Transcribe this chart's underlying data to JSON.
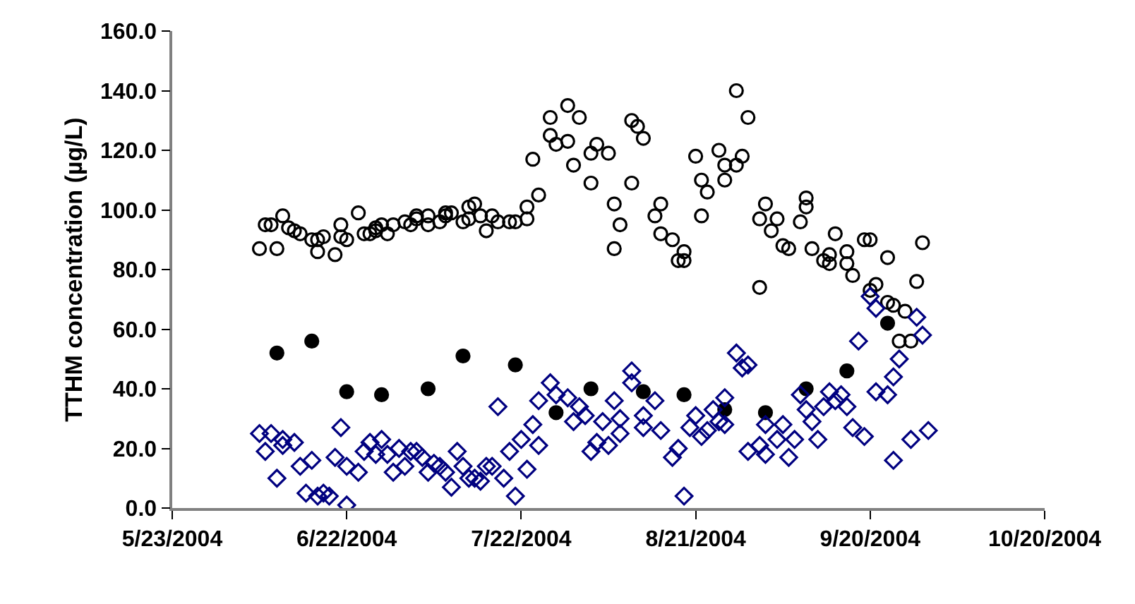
{
  "chart_data": {
    "type": "scatter",
    "ylabel": "TTHM concentration (µg/L)",
    "xlim": [
      "2004-05-23",
      "2004-10-20"
    ],
    "xticks": [
      {
        "value": "2004-05-23",
        "label": "5/23/2004"
      },
      {
        "value": "2004-06-22",
        "label": "6/22/2004"
      },
      {
        "value": "2004-07-22",
        "label": "7/22/2004"
      },
      {
        "value": "2004-08-21",
        "label": "8/21/2004"
      },
      {
        "value": "2004-09-20",
        "label": "9/20/2004"
      },
      {
        "value": "2004-10-20",
        "label": "10/20/2004"
      }
    ],
    "ylim": [
      0,
      160
    ],
    "yticks": [
      {
        "value": 0,
        "label": "0.0"
      },
      {
        "value": 20,
        "label": "20.0"
      },
      {
        "value": 40,
        "label": "40.0"
      },
      {
        "value": 60,
        "label": "60.0"
      },
      {
        "value": 80,
        "label": "80.0"
      },
      {
        "value": 100,
        "label": "100.0"
      },
      {
        "value": 120,
        "label": "120.0"
      },
      {
        "value": 140,
        "label": "140.0"
      },
      {
        "value": 160,
        "label": "160.0"
      }
    ],
    "series": [
      {
        "color": "#000000",
        "marker": "circle-open",
        "x": [
          "2004-06-07",
          "2004-06-08",
          "2004-06-09",
          "2004-06-10",
          "2004-06-11",
          "2004-06-12",
          "2004-06-13",
          "2004-06-14",
          "2004-06-16",
          "2004-06-17",
          "2004-06-17",
          "2004-06-18",
          "2004-06-20",
          "2004-06-21",
          "2004-06-21",
          "2004-06-22",
          "2004-06-24",
          "2004-06-25",
          "2004-06-26",
          "2004-06-27",
          "2004-06-27",
          "2004-06-28",
          "2004-06-29",
          "2004-06-30",
          "2004-07-02",
          "2004-07-03",
          "2004-07-04",
          "2004-07-04",
          "2004-07-06",
          "2004-07-06",
          "2004-07-08",
          "2004-07-09",
          "2004-07-09",
          "2004-07-10",
          "2004-07-12",
          "2004-07-13",
          "2004-07-13",
          "2004-07-14",
          "2004-07-15",
          "2004-07-16",
          "2004-07-17",
          "2004-07-18",
          "2004-07-20",
          "2004-07-21",
          "2004-07-23",
          "2004-07-23",
          "2004-07-24",
          "2004-07-25",
          "2004-07-27",
          "2004-07-27",
          "2004-07-28",
          "2004-07-30",
          "2004-07-30",
          "2004-07-31",
          "2004-08-01",
          "2004-08-03",
          "2004-08-03",
          "2004-08-04",
          "2004-08-06",
          "2004-08-07",
          "2004-08-07",
          "2004-08-08",
          "2004-08-10",
          "2004-08-10",
          "2004-08-11",
          "2004-08-12",
          "2004-08-14",
          "2004-08-15",
          "2004-08-15",
          "2004-08-17",
          "2004-08-18",
          "2004-08-19",
          "2004-08-19",
          "2004-08-21",
          "2004-08-22",
          "2004-08-22",
          "2004-08-23",
          "2004-08-25",
          "2004-08-26",
          "2004-08-26",
          "2004-08-28",
          "2004-08-28",
          "2004-08-29",
          "2004-08-30",
          "2004-09-01",
          "2004-09-01",
          "2004-09-02",
          "2004-09-03",
          "2004-09-04",
          "2004-09-05",
          "2004-09-06",
          "2004-09-08",
          "2004-09-09",
          "2004-09-09",
          "2004-09-10",
          "2004-09-12",
          "2004-09-13",
          "2004-09-13",
          "2004-09-14",
          "2004-09-16",
          "2004-09-16",
          "2004-09-17",
          "2004-09-19",
          "2004-09-20",
          "2004-09-20",
          "2004-09-21",
          "2004-09-23",
          "2004-09-23",
          "2004-09-24",
          "2004-09-25",
          "2004-09-26",
          "2004-09-27",
          "2004-09-28",
          "2004-09-29"
        ],
        "values": [
          87,
          95,
          95,
          87,
          98,
          94,
          93,
          92,
          90,
          90,
          86,
          91,
          85,
          91,
          95,
          90,
          99,
          92,
          92,
          93,
          94,
          95,
          92,
          95,
          96,
          95,
          97,
          98,
          95,
          98,
          96,
          99,
          98,
          99,
          96,
          97,
          101,
          102,
          98,
          93,
          98,
          96,
          96,
          96,
          101,
          97,
          117,
          105,
          125,
          131,
          122,
          135,
          123,
          115,
          131,
          119,
          109,
          122,
          119,
          102,
          87,
          95,
          109,
          130,
          128,
          124,
          98,
          102,
          92,
          90,
          83,
          86,
          83,
          118,
          110,
          98,
          106,
          120,
          110,
          115,
          115,
          140,
          118,
          131,
          74,
          97,
          102,
          93,
          97,
          88,
          87,
          96,
          104,
          101,
          87,
          83,
          85,
          82,
          92,
          86,
          82,
          78,
          90,
          73,
          90,
          75,
          84,
          69,
          68,
          56,
          66,
          56,
          76,
          89
        ]
      },
      {
        "color": "#000000",
        "marker": "circle",
        "x": [
          "2004-06-10",
          "2004-06-16",
          "2004-06-22",
          "2004-06-28",
          "2004-07-06",
          "2004-07-12",
          "2004-07-21",
          "2004-07-28",
          "2004-08-03",
          "2004-08-12",
          "2004-08-19",
          "2004-08-26",
          "2004-09-02",
          "2004-09-09",
          "2004-09-16",
          "2004-09-23"
        ],
        "values": [
          52,
          56,
          39,
          38,
          40,
          51,
          48,
          32,
          40,
          39,
          38,
          33,
          32,
          40,
          46,
          62
        ]
      },
      {
        "color": "#000080",
        "marker": "diamond-open",
        "x": [
          "2004-06-07",
          "2004-06-08",
          "2004-06-09",
          "2004-06-10",
          "2004-06-11",
          "2004-06-11",
          "2004-06-13",
          "2004-06-14",
          "2004-06-15",
          "2004-06-16",
          "2004-06-17",
          "2004-06-18",
          "2004-06-19",
          "2004-06-20",
          "2004-06-21",
          "2004-06-22",
          "2004-06-22",
          "2004-06-24",
          "2004-06-25",
          "2004-06-26",
          "2004-06-27",
          "2004-06-28",
          "2004-06-29",
          "2004-06-30",
          "2004-07-01",
          "2004-07-02",
          "2004-07-03",
          "2004-07-04",
          "2004-07-05",
          "2004-07-06",
          "2004-07-07",
          "2004-07-08",
          "2004-07-09",
          "2004-07-10",
          "2004-07-11",
          "2004-07-12",
          "2004-07-13",
          "2004-07-14",
          "2004-07-15",
          "2004-07-16",
          "2004-07-17",
          "2004-07-18",
          "2004-07-19",
          "2004-07-20",
          "2004-07-21",
          "2004-07-22",
          "2004-07-23",
          "2004-07-24",
          "2004-07-25",
          "2004-07-25",
          "2004-07-27",
          "2004-07-28",
          "2004-07-30",
          "2004-07-31",
          "2004-08-01",
          "2004-08-02",
          "2004-08-03",
          "2004-08-04",
          "2004-08-05",
          "2004-08-06",
          "2004-08-07",
          "2004-08-08",
          "2004-08-08",
          "2004-08-10",
          "2004-08-10",
          "2004-08-12",
          "2004-08-12",
          "2004-08-14",
          "2004-08-15",
          "2004-08-17",
          "2004-08-18",
          "2004-08-19",
          "2004-08-20",
          "2004-08-21",
          "2004-08-22",
          "2004-08-23",
          "2004-08-24",
          "2004-08-25",
          "2004-08-26",
          "2004-08-26",
          "2004-08-28",
          "2004-08-29",
          "2004-08-30",
          "2004-08-30",
          "2004-09-01",
          "2004-09-02",
          "2004-09-02",
          "2004-09-04",
          "2004-09-05",
          "2004-09-06",
          "2004-09-07",
          "2004-09-08",
          "2004-09-09",
          "2004-09-10",
          "2004-09-11",
          "2004-09-12",
          "2004-09-13",
          "2004-09-14",
          "2004-09-15",
          "2004-09-16",
          "2004-09-17",
          "2004-09-18",
          "2004-09-19",
          "2004-09-20",
          "2004-09-21",
          "2004-09-21",
          "2004-09-23",
          "2004-09-24",
          "2004-09-24",
          "2004-09-25",
          "2004-09-27",
          "2004-09-28",
          "2004-09-29",
          "2004-09-30"
        ],
        "values": [
          25,
          19,
          25,
          10,
          21,
          23,
          22,
          14,
          5,
          16,
          4,
          5,
          4,
          17,
          27,
          1,
          14,
          12,
          19,
          22,
          18,
          23,
          18,
          12,
          20,
          14,
          19,
          19,
          17,
          12,
          15,
          14,
          12,
          7,
          19,
          14,
          10,
          10,
          9,
          14,
          14,
          34,
          10,
          19,
          4,
          23,
          13,
          28,
          21,
          36,
          42,
          38,
          37,
          29,
          34,
          31,
          19,
          22,
          29,
          21,
          36,
          25,
          30,
          46,
          42,
          31,
          27,
          36,
          26,
          17,
          20,
          4,
          27,
          31,
          24,
          26,
          33,
          29,
          37,
          28,
          52,
          47,
          48,
          19,
          21,
          28,
          18,
          23,
          28,
          17,
          23,
          38,
          33,
          29,
          23,
          34,
          39,
          36,
          38,
          34,
          27,
          56,
          24,
          71,
          39,
          67,
          38,
          44,
          16,
          50,
          23,
          64,
          58,
          26
        ]
      }
    ]
  }
}
